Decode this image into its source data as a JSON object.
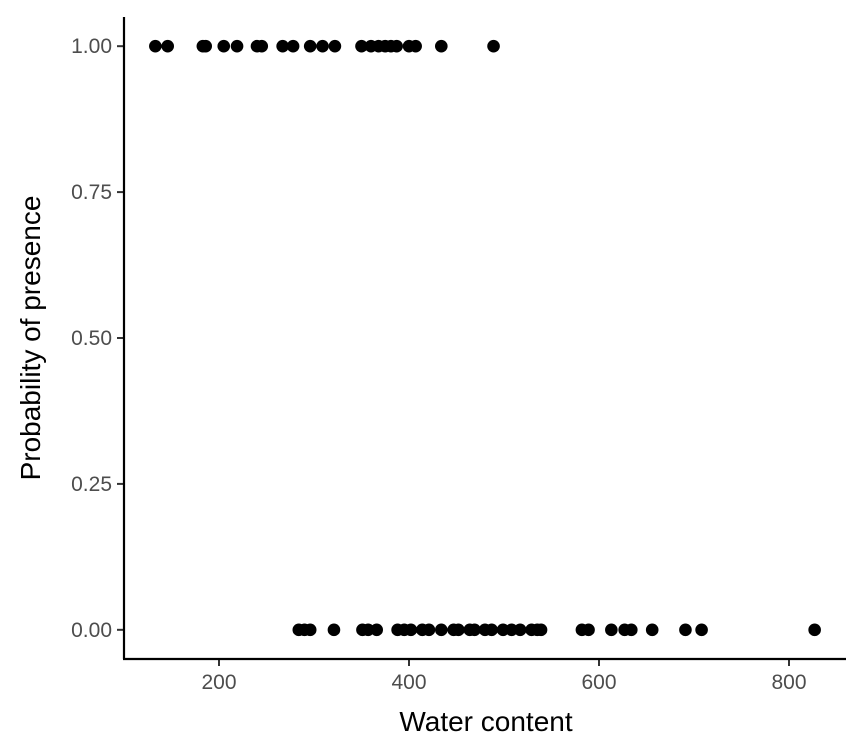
{
  "chart_data": {
    "type": "scatter",
    "title": "",
    "xlabel": "Water content",
    "ylabel": "Probability of presence",
    "xlim": [
      100,
      860
    ],
    "ylim": [
      -0.05,
      1.05
    ],
    "xticks": [
      200,
      400,
      600,
      800
    ],
    "xtick_labels": [
      "200",
      "400",
      "600",
      "800"
    ],
    "yticks": [
      0,
      0.25,
      0.5,
      0.75,
      1.0
    ],
    "ytick_labels": [
      "0.00",
      "0.25",
      "0.50",
      "0.75",
      "1.00"
    ],
    "grid": false,
    "legend": "none",
    "point_color": "#000000",
    "series": [
      {
        "x": [
          133,
          146,
          183,
          186,
          205,
          219,
          240,
          245,
          267,
          278,
          296,
          309,
          322,
          350,
          360,
          368,
          375,
          381,
          387,
          400,
          407,
          434,
          489
        ],
        "y": [
          1,
          1,
          1,
          1,
          1,
          1,
          1,
          1,
          1,
          1,
          1,
          1,
          1,
          1,
          1,
          1,
          1,
          1,
          1,
          1,
          1,
          1,
          1
        ]
      },
      {
        "x": [
          284,
          290,
          296,
          321,
          351,
          357,
          366,
          388,
          395,
          402,
          414,
          421,
          434,
          447,
          452,
          464,
          469,
          480,
          487,
          499,
          508,
          517,
          529,
          535,
          539,
          582,
          589,
          613,
          627,
          634,
          656,
          691,
          708,
          827
        ],
        "y": [
          0,
          0,
          0,
          0,
          0,
          0,
          0,
          0,
          0,
          0,
          0,
          0,
          0,
          0,
          0,
          0,
          0,
          0,
          0,
          0,
          0,
          0,
          0,
          0,
          0,
          0,
          0,
          0,
          0,
          0,
          0,
          0,
          0,
          0
        ]
      }
    ]
  }
}
